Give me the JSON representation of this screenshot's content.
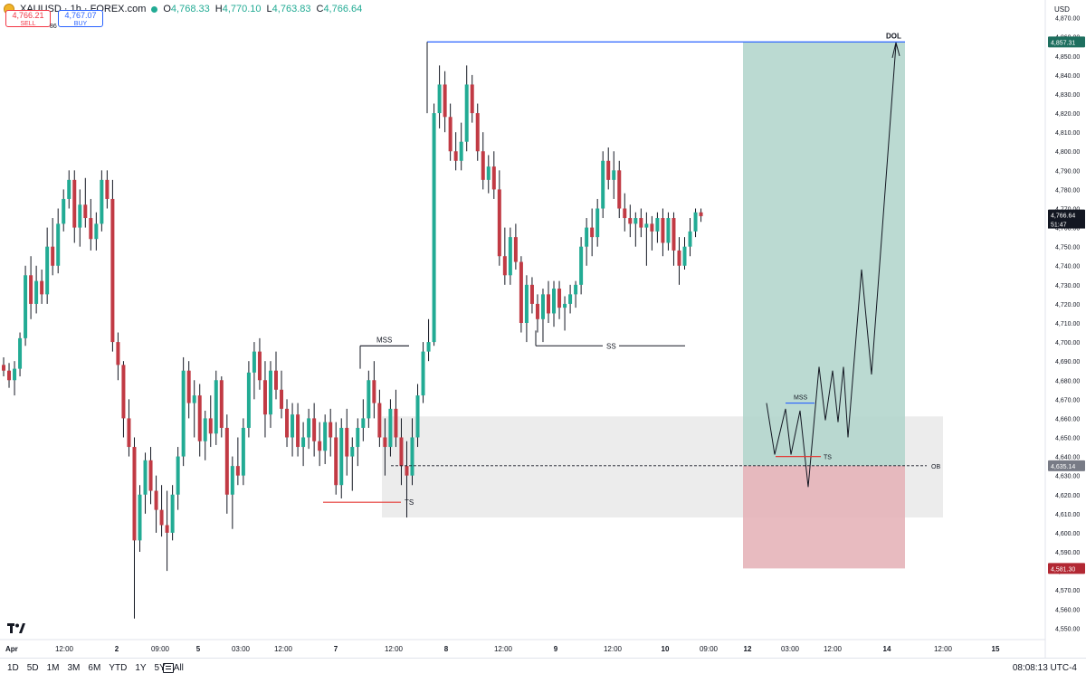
{
  "header": {
    "symbol": "XAUUSD · 1h · FOREX.com",
    "open_label": "O",
    "open": "4,768.33",
    "high_label": "H",
    "high": "4,770.10",
    "low_label": "L",
    "low": "4,763.83",
    "close_label": "C",
    "close": "4,766.64"
  },
  "trade": {
    "sell_price": "4,766.21",
    "sell_label": "SELL",
    "spread": "86",
    "buy_price": "4,767.07",
    "buy_label": "BUY"
  },
  "currency": "USD",
  "bottom": {
    "ranges": [
      "1D",
      "5D",
      "1M",
      "3M",
      "6M",
      "YTD",
      "1Y",
      "5Y",
      "All"
    ],
    "clock": "08:08:13 UTC-4"
  },
  "colors": {
    "up": "#22ab94",
    "down": "#c13a44",
    "wick": "#131722",
    "target_zone": "#b4d6cd",
    "stop_zone": "#e6b4b9",
    "ob_zone": "#ececec",
    "blue_line": "#2962ff",
    "red_line": "#e53935"
  },
  "chart_data": {
    "type": "candlestick",
    "y_range": [
      4544,
      4876
    ],
    "y_ticks": [
      4550,
      4560,
      4570,
      4580,
      4590,
      4600,
      4610,
      4620,
      4630,
      4640,
      4650,
      4660,
      4670,
      4680,
      4690,
      4700,
      4710,
      4720,
      4730,
      4740,
      4750,
      4760,
      4770,
      4780,
      4790,
      4800,
      4810,
      4820,
      4830,
      4840,
      4850,
      4860,
      4870
    ],
    "x_ticks": [
      {
        "label": "Apr",
        "px": 6
      },
      {
        "label": "12:00",
        "px": 71
      },
      {
        "label": "2",
        "px": 129
      },
      {
        "label": "09:00",
        "px": 177
      },
      {
        "label": "5",
        "px": 219
      },
      {
        "label": "03:00",
        "px": 266
      },
      {
        "label": "12:00",
        "px": 313
      },
      {
        "label": "7",
        "px": 371
      },
      {
        "label": "12:00",
        "px": 435
      },
      {
        "label": "8",
        "px": 493
      },
      {
        "label": "12:00",
        "px": 556
      },
      {
        "label": "9",
        "px": 614
      },
      {
        "label": "12:00",
        "px": 677
      },
      {
        "label": "10",
        "px": 735
      },
      {
        "label": "09:00",
        "px": 783
      },
      {
        "label": "12",
        "px": 826
      },
      {
        "label": "03:00",
        "px": 873
      },
      {
        "label": "12:00",
        "px": 920
      },
      {
        "label": "14",
        "px": 980
      },
      {
        "label": "12:00",
        "px": 1042
      },
      {
        "label": "15",
        "px": 1100
      }
    ],
    "candles": [
      [
        4688,
        4692,
        4682,
        4685
      ],
      [
        4685,
        4689,
        4676,
        4680
      ],
      [
        4680,
        4690,
        4672,
        4686
      ],
      [
        4686,
        4705,
        4682,
        4702
      ],
      [
        4702,
        4740,
        4698,
        4735
      ],
      [
        4735,
        4745,
        4712,
        4720
      ],
      [
        4720,
        4740,
        4715,
        4732
      ],
      [
        4732,
        4738,
        4720,
        4725
      ],
      [
        4725,
        4760,
        4720,
        4750
      ],
      [
        4750,
        4765,
        4735,
        4740
      ],
      [
        4740,
        4770,
        4736,
        4762
      ],
      [
        4762,
        4780,
        4758,
        4775
      ],
      [
        4775,
        4790,
        4770,
        4785
      ],
      [
        4785,
        4790,
        4752,
        4760
      ],
      [
        4760,
        4780,
        4750,
        4772
      ],
      [
        4772,
        4786,
        4760,
        4765
      ],
      [
        4765,
        4775,
        4748,
        4754
      ],
      [
        4754,
        4768,
        4748,
        4762
      ],
      [
        4762,
        4790,
        4758,
        4785
      ],
      [
        4785,
        4790,
        4770,
        4775
      ],
      [
        4775,
        4785,
        4695,
        4700
      ],
      [
        4700,
        4705,
        4680,
        4688
      ],
      [
        4688,
        4690,
        4650,
        4660
      ],
      [
        4660,
        4670,
        4640,
        4645
      ],
      [
        4645,
        4650,
        4555,
        4596
      ],
      [
        4596,
        4625,
        4590,
        4620
      ],
      [
        4620,
        4642,
        4610,
        4638
      ],
      [
        4638,
        4645,
        4615,
        4622
      ],
      [
        4622,
        4630,
        4600,
        4612
      ],
      [
        4612,
        4625,
        4598,
        4604
      ],
      [
        4604,
        4622,
        4580,
        4600
      ],
      [
        4600,
        4625,
        4596,
        4620
      ],
      [
        4620,
        4645,
        4612,
        4640
      ],
      [
        4640,
        4692,
        4635,
        4685
      ],
      [
        4685,
        4690,
        4660,
        4668
      ],
      [
        4668,
        4680,
        4650,
        4672
      ],
      [
        4672,
        4678,
        4640,
        4648
      ],
      [
        4648,
        4664,
        4638,
        4660
      ],
      [
        4660,
        4672,
        4645,
        4652
      ],
      [
        4652,
        4685,
        4646,
        4680
      ],
      [
        4680,
        4682,
        4650,
        4655
      ],
      [
        4655,
        4662,
        4610,
        4620
      ],
      [
        4620,
        4640,
        4602,
        4635
      ],
      [
        4635,
        4650,
        4625,
        4630
      ],
      [
        4630,
        4660,
        4625,
        4655
      ],
      [
        4655,
        4690,
        4650,
        4684
      ],
      [
        4684,
        4700,
        4670,
        4695
      ],
      [
        4695,
        4702,
        4675,
        4680
      ],
      [
        4680,
        4690,
        4650,
        4662
      ],
      [
        4662,
        4690,
        4655,
        4685
      ],
      [
        4685,
        4695,
        4670,
        4675
      ],
      [
        4675,
        4685,
        4660,
        4665
      ],
      [
        4665,
        4670,
        4645,
        4650
      ],
      [
        4650,
        4668,
        4640,
        4662
      ],
      [
        4662,
        4668,
        4640,
        4645
      ],
      [
        4645,
        4658,
        4635,
        4650
      ],
      [
        4650,
        4665,
        4644,
        4660
      ],
      [
        4660,
        4668,
        4640,
        4648
      ],
      [
        4648,
        4658,
        4635,
        4643
      ],
      [
        4643,
        4662,
        4636,
        4658
      ],
      [
        4658,
        4665,
        4640,
        4650
      ],
      [
        4650,
        4658,
        4620,
        4625
      ],
      [
        4625,
        4660,
        4618,
        4655
      ],
      [
        4655,
        4665,
        4630,
        4640
      ],
      [
        4640,
        4650,
        4622,
        4645
      ],
      [
        4645,
        4660,
        4635,
        4655
      ],
      [
        4655,
        4670,
        4648,
        4660
      ],
      [
        4660,
        4685,
        4655,
        4680
      ],
      [
        4680,
        4690,
        4660,
        4668
      ],
      [
        4668,
        4675,
        4645,
        4650
      ],
      [
        4650,
        4660,
        4630,
        4645
      ],
      [
        4645,
        4670,
        4640,
        4665
      ],
      [
        4665,
        4675,
        4645,
        4650
      ],
      [
        4650,
        4660,
        4625,
        4635
      ],
      [
        4635,
        4648,
        4608,
        4630
      ],
      [
        4630,
        4660,
        4625,
        4650
      ],
      [
        4650,
        4678,
        4645,
        4672
      ],
      [
        4672,
        4700,
        4668,
        4695
      ],
      [
        4695,
        4712,
        4690,
        4700
      ],
      [
        4700,
        4825,
        4698,
        4820
      ],
      [
        4820,
        4845,
        4812,
        4835
      ],
      [
        4835,
        4842,
        4810,
        4818
      ],
      [
        4818,
        4825,
        4795,
        4800
      ],
      [
        4800,
        4810,
        4790,
        4795
      ],
      [
        4795,
        4815,
        4790,
        4805
      ],
      [
        4805,
        4845,
        4800,
        4835
      ],
      [
        4835,
        4840,
        4815,
        4820
      ],
      [
        4820,
        4825,
        4795,
        4800
      ],
      [
        4800,
        4810,
        4780,
        4785
      ],
      [
        4785,
        4798,
        4778,
        4792
      ],
      [
        4792,
        4800,
        4775,
        4780
      ],
      [
        4780,
        4790,
        4740,
        4745
      ],
      [
        4745,
        4760,
        4730,
        4735
      ],
      [
        4735,
        4760,
        4730,
        4755
      ],
      [
        4755,
        4762,
        4738,
        4742
      ],
      [
        4742,
        4745,
        4705,
        4710
      ],
      [
        4710,
        4735,
        4700,
        4730
      ],
      [
        4730,
        4734,
        4715,
        4720
      ],
      [
        4720,
        4725,
        4705,
        4712
      ],
      [
        4712,
        4728,
        4700,
        4725
      ],
      [
        4725,
        4732,
        4710,
        4715
      ],
      [
        4715,
        4732,
        4708,
        4728
      ],
      [
        4728,
        4732,
        4712,
        4718
      ],
      [
        4718,
        4724,
        4706,
        4720
      ],
      [
        4720,
        4730,
        4715,
        4725
      ],
      [
        4725,
        4732,
        4718,
        4730
      ],
      [
        4730,
        4755,
        4725,
        4750
      ],
      [
        4750,
        4765,
        4740,
        4760
      ],
      [
        4760,
        4770,
        4745,
        4755
      ],
      [
        4755,
        4775,
        4750,
        4770
      ],
      [
        4770,
        4800,
        4765,
        4795
      ],
      [
        4795,
        4802,
        4780,
        4785
      ],
      [
        4785,
        4800,
        4775,
        4790
      ],
      [
        4790,
        4795,
        4765,
        4770
      ],
      [
        4770,
        4778,
        4758,
        4765
      ],
      [
        4765,
        4772,
        4755,
        4762
      ],
      [
        4762,
        4768,
        4750,
        4765
      ],
      [
        4765,
        4770,
        4755,
        4760
      ],
      [
        4760,
        4768,
        4740,
        4762
      ],
      [
        4762,
        4766,
        4748,
        4758
      ],
      [
        4758,
        4768,
        4752,
        4765
      ],
      [
        4765,
        4770,
        4745,
        4752
      ],
      [
        4752,
        4768,
        4748,
        4765
      ],
      [
        4765,
        4768,
        4740,
        4748
      ],
      [
        4748,
        4755,
        4730,
        4740
      ],
      [
        4740,
        4755,
        4738,
        4750
      ],
      [
        4750,
        4765,
        4745,
        4758
      ],
      [
        4758,
        4770,
        4755,
        4768
      ],
      [
        4768,
        4770,
        4763,
        4766
      ]
    ],
    "annotations": {
      "mss": "MSS",
      "ts": "TS",
      "ss": "SS",
      "dol": "DOL",
      "ob": "OB"
    },
    "price_labels": {
      "dol_price": "4,857.31",
      "current_price": "4,766.64",
      "countdown": "51:47",
      "ob_price": "4,635.14",
      "stop_price": "4,581.30"
    },
    "levels": {
      "dol": 4857.31,
      "ob": 4635.14,
      "stop": 4581.3,
      "ob_zone": [
        4608,
        4661
      ],
      "mss_left": 4698,
      "ts_left": 4616,
      "ss": 4698
    }
  }
}
